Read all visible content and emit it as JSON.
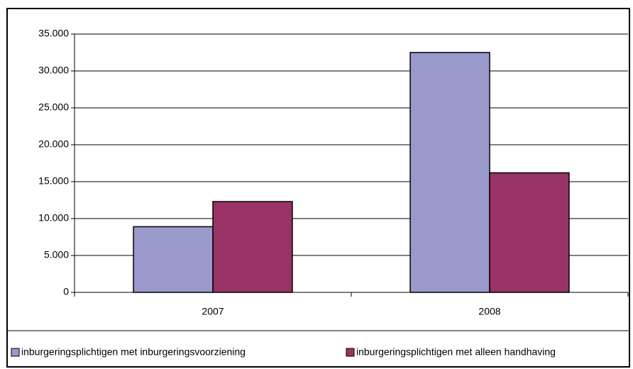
{
  "chart_data": {
    "type": "bar",
    "categories": [
      "2007",
      "2008"
    ],
    "series": [
      {
        "name": "inburgeringsplichtigen met inburgeringsvoorziening",
        "color": "#9999cc",
        "values": [
          8900,
          32500
        ]
      },
      {
        "name": "inburgeringsplichtigen met alleen handhaving",
        "color": "#993366",
        "values": [
          12300,
          16200
        ]
      }
    ],
    "ylim": [
      0,
      35000
    ],
    "yticks": [
      0,
      {
        "value": 5000,
        "label": "5.000"
      },
      {
        "value": 10000,
        "label": "10.000"
      },
      {
        "value": 15000,
        "label": "15.000"
      },
      {
        "value": 20000,
        "label": "20.000"
      },
      {
        "value": 25000,
        "label": "25.000"
      },
      {
        "value": 30000,
        "label": "30.000"
      },
      {
        "value": 35000,
        "label": "35.000"
      }
    ],
    "grid": true,
    "legend": "bottom"
  }
}
